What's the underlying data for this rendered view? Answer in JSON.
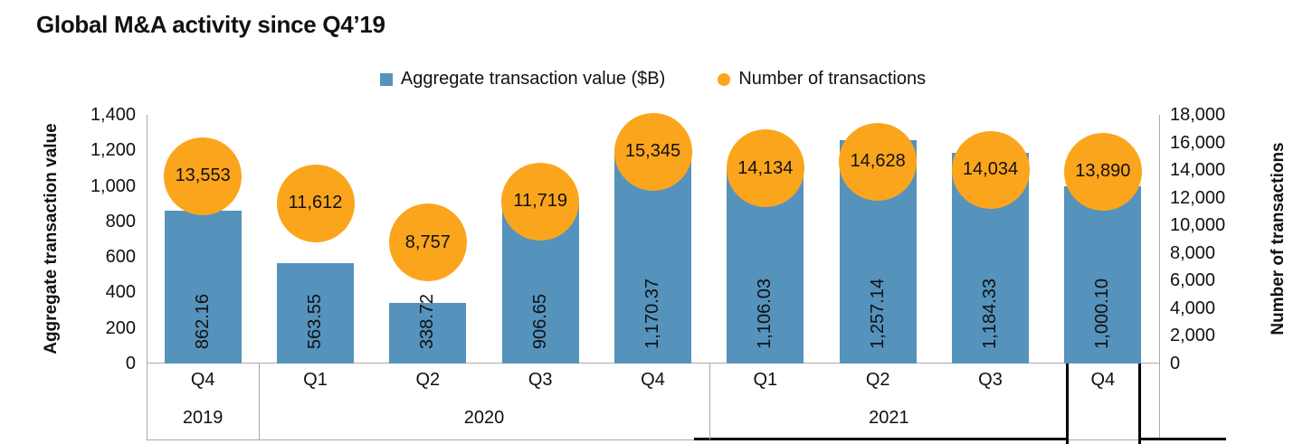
{
  "title": "Global M&A activity since Q4’19",
  "chart_data": {
    "type": "combo",
    "categories": [
      "Q4",
      "Q1",
      "Q2",
      "Q3",
      "Q4",
      "Q1",
      "Q2",
      "Q3",
      "Q4"
    ],
    "year_groups": [
      {
        "label": "2019",
        "span": 1
      },
      {
        "label": "2020",
        "span": 4
      },
      {
        "label": "2021",
        "span": 4
      }
    ],
    "series": [
      {
        "name": "Aggregate transaction value ($B)",
        "type": "bar",
        "axis": "left",
        "color": "#5593BD",
        "values": [
          862.16,
          563.55,
          338.72,
          906.65,
          1170.37,
          1106.03,
          1257.14,
          1184.33,
          1000.1
        ],
        "labels": [
          "862.16",
          "563.55",
          "338.72",
          "906.65",
          "1,170.37",
          "1,106.03",
          "1,257.14",
          "1,184.33",
          "1,000.10"
        ]
      },
      {
        "name": "Number of transactions",
        "type": "point",
        "axis": "right",
        "color": "#FBA51D",
        "values": [
          13553,
          11612,
          8757,
          11719,
          15345,
          14134,
          14628,
          14034,
          13890
        ],
        "labels": [
          "13,553",
          "11,612",
          "8,757",
          "11,719",
          "15,345",
          "14,134",
          "14,628",
          "14,034",
          "13,890"
        ]
      }
    ],
    "left_axis": {
      "title": "Aggregate transaction value",
      "min": 0,
      "max": 1400,
      "step": 200,
      "tick_labels": [
        "0",
        "200",
        "400",
        "600",
        "800",
        "1,000",
        "1,200",
        "1,400"
      ]
    },
    "right_axis": {
      "title": "Number of transactions",
      "min": 0,
      "max": 18000,
      "step": 2000,
      "tick_labels": [
        "0",
        "2,000",
        "4,000",
        "6,000",
        "8,000",
        "10,000",
        "12,000",
        "14,000",
        "16,000",
        "18,000"
      ]
    },
    "grid": false,
    "legend_position": "top",
    "annotation": {
      "highlight": "Q4 2021 bracket",
      "color": "#000000"
    }
  }
}
